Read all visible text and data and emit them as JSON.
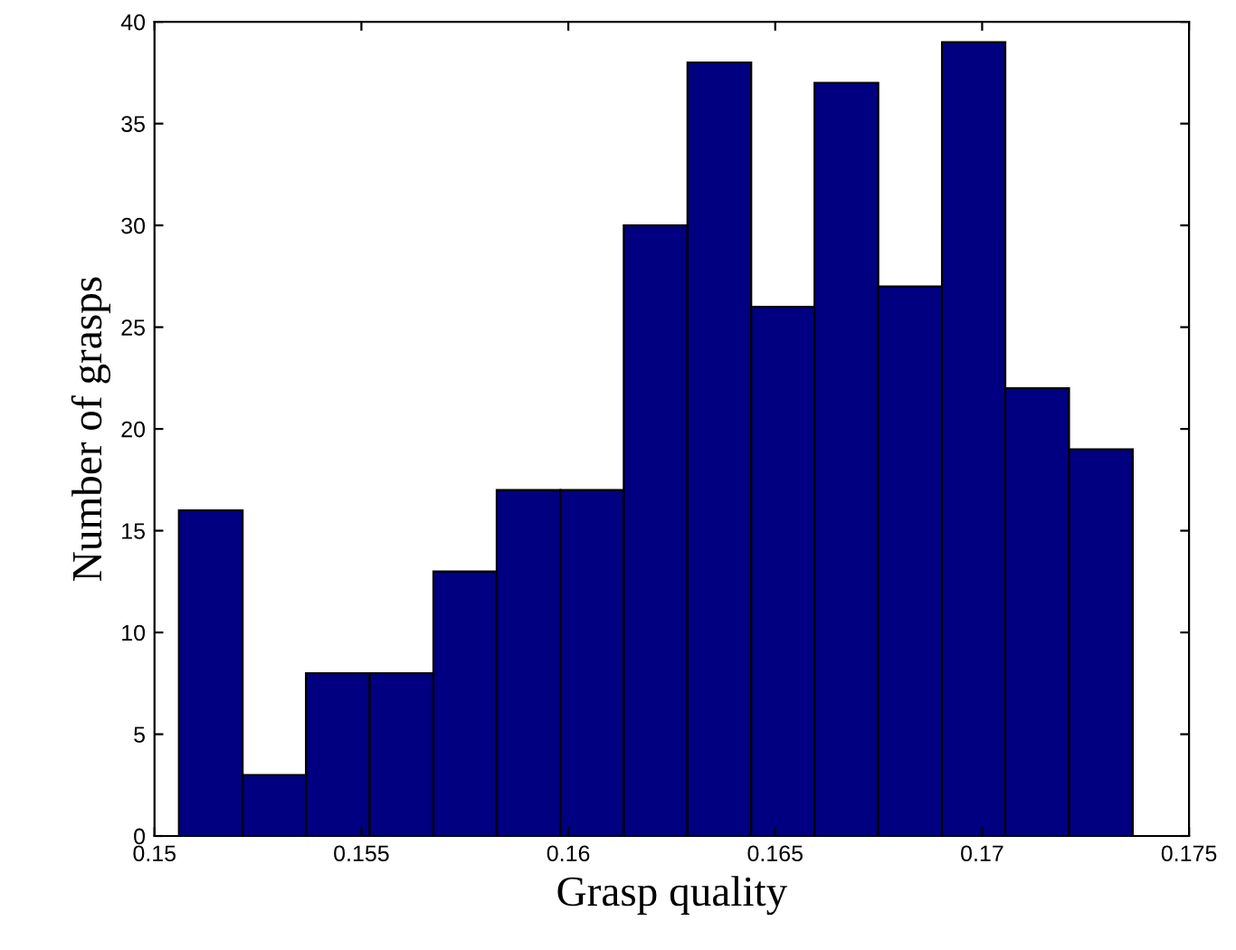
{
  "chart_data": {
    "type": "histogram",
    "xlabel": "Grasp quality",
    "ylabel": "Number of grasps",
    "bins": [
      0.15059,
      0.15213,
      0.15366,
      0.1552,
      0.15674,
      0.15827,
      0.15981,
      0.16134,
      0.16288,
      0.16442,
      0.16595,
      0.16749,
      0.16903,
      0.17056,
      0.1721,
      0.17364
    ],
    "values": [
      16,
      3,
      8,
      8,
      13,
      17,
      17,
      30,
      38,
      26,
      37,
      27,
      39,
      22,
      19
    ],
    "color": "#000080",
    "xlim": [
      0.15,
      0.175
    ],
    "xticks": [
      0.15,
      0.155,
      0.16,
      0.165,
      0.17,
      0.175
    ],
    "ylim": [
      0,
      40
    ],
    "yticks": [
      0,
      5,
      10,
      15,
      20,
      25,
      30,
      35,
      40
    ],
    "grid": false
  }
}
